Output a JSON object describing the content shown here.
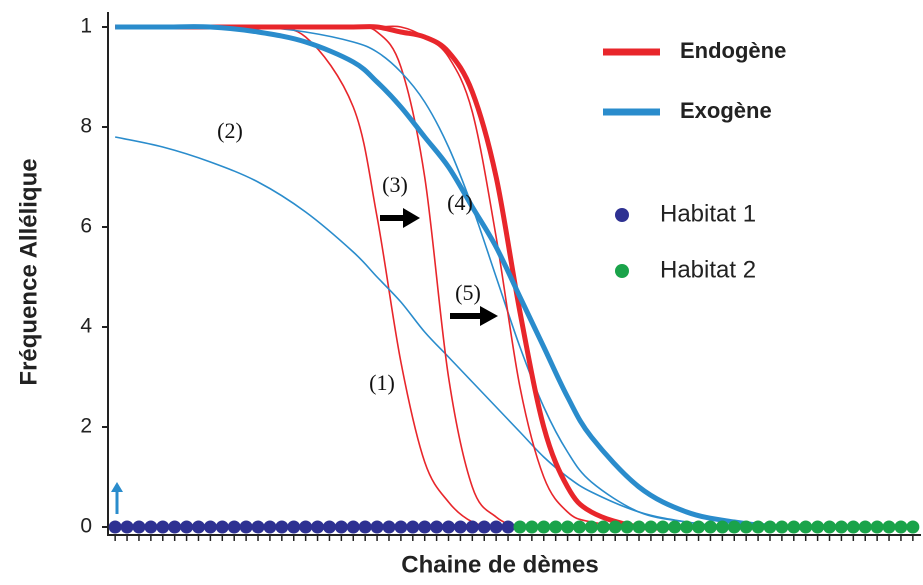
{
  "chart_data": {
    "type": "line",
    "ylabel": "Fréquence Allélique",
    "xlabel": "Chaine de dèmes",
    "xlim": [
      -0.6,
      67.6
    ],
    "ylim": [
      0,
      1
    ],
    "yticks": [
      0,
      {
        "value": 0.2,
        "label": "2"
      },
      {
        "value": 0.4,
        "label": "4"
      },
      {
        "value": 0.6,
        "label": "6"
      },
      {
        "value": 0.8,
        "label": "8"
      },
      1
    ],
    "x": [
      0,
      4,
      8,
      12,
      16,
      20,
      22,
      24,
      26,
      28,
      30,
      32,
      34,
      36,
      38,
      40,
      44,
      48,
      52,
      56,
      60,
      64,
      67
    ],
    "series": [
      {
        "name": "Endogène",
        "color": "#e8262b",
        "values": [
          1,
          1,
          1,
          1,
          1,
          1,
          1,
          0.99,
          0.98,
          0.95,
          0.87,
          0.7,
          0.43,
          0.2,
          0.08,
          0.03,
          0,
          0,
          0,
          0,
          0,
          0,
          0
        ]
      },
      {
        "name": "Exogène",
        "color": "#2a8ccc",
        "values": [
          1,
          1,
          1,
          0.99,
          0.97,
          0.93,
          0.89,
          0.84,
          0.78,
          0.72,
          0.64,
          0.56,
          0.46,
          0.36,
          0.26,
          0.18,
          0.08,
          0.03,
          0.01,
          0,
          0,
          0,
          0
        ]
      },
      {
        "label": "(1)",
        "color": "#e8262b",
        "values": [
          1,
          1,
          1,
          1,
          0.98,
          0.84,
          0.62,
          0.33,
          0.13,
          0.05,
          0.01,
          0,
          0,
          0,
          0,
          0,
          0,
          0,
          0,
          0,
          0,
          0,
          0
        ]
      },
      {
        "label": "(2)",
        "color": "#2a8ccc",
        "values": [
          0.78,
          0.76,
          0.73,
          0.69,
          0.63,
          0.55,
          0.5,
          0.45,
          0.39,
          0.34,
          0.29,
          0.24,
          0.19,
          0.14,
          0.1,
          0.07,
          0.03,
          0.01,
          0,
          0,
          0,
          0,
          0
        ]
      },
      {
        "label": "(3)",
        "color": "#e8262b",
        "values": [
          1,
          1,
          1,
          1,
          1,
          1,
          0.99,
          0.92,
          0.7,
          0.3,
          0.08,
          0.02,
          0,
          0,
          0,
          0,
          0,
          0,
          0,
          0,
          0,
          0,
          0
        ]
      },
      {
        "label": "(4)",
        "color": "#2a8ccc",
        "values": [
          1,
          1,
          1,
          1,
          0.99,
          0.97,
          0.95,
          0.91,
          0.85,
          0.76,
          0.64,
          0.5,
          0.36,
          0.24,
          0.15,
          0.09,
          0.03,
          0.01,
          0,
          0,
          0,
          0,
          0
        ]
      },
      {
        "label": "(5)",
        "color": "#e8262b",
        "values": [
          1,
          1,
          1,
          1,
          1,
          1,
          1,
          1,
          0.98,
          0.94,
          0.83,
          0.58,
          0.28,
          0.1,
          0.03,
          0.01,
          0,
          0,
          0,
          0,
          0,
          0,
          0
        ]
      }
    ],
    "points": [
      {
        "name": "Habitat 1",
        "color": "#2e3192",
        "x": [
          0,
          1,
          2,
          3,
          4,
          5,
          6,
          7,
          8,
          9,
          10,
          11,
          12,
          13,
          14,
          15,
          16,
          17,
          18,
          19,
          20,
          21,
          22,
          23,
          24,
          25,
          26,
          27,
          28,
          29,
          30,
          31,
          32,
          33
        ],
        "values": [
          0,
          0,
          0,
          0,
          0,
          0,
          0,
          0,
          0,
          0,
          0,
          0,
          0,
          0,
          0,
          0,
          0,
          0,
          0,
          0,
          0,
          0,
          0,
          0,
          0,
          0,
          0,
          0,
          0,
          0,
          0,
          0,
          0,
          0
        ]
      },
      {
        "name": "Habitat 2",
        "color": "#1aa34a",
        "x": [
          34,
          35,
          36,
          37,
          38,
          39,
          40,
          41,
          42,
          43,
          44,
          45,
          46,
          47,
          48,
          49,
          50,
          51,
          52,
          53,
          54,
          55,
          56,
          57,
          58,
          59,
          60,
          61,
          62,
          63,
          64,
          65,
          66,
          67
        ],
        "values": [
          0,
          0,
          0,
          0,
          0,
          0,
          0,
          0,
          0,
          0,
          0,
          0,
          0,
          0,
          0,
          0,
          0,
          0,
          0,
          0,
          0,
          0,
          0,
          0,
          0,
          0,
          0,
          0,
          0,
          0,
          0,
          0,
          0,
          0
        ]
      }
    ]
  }
}
